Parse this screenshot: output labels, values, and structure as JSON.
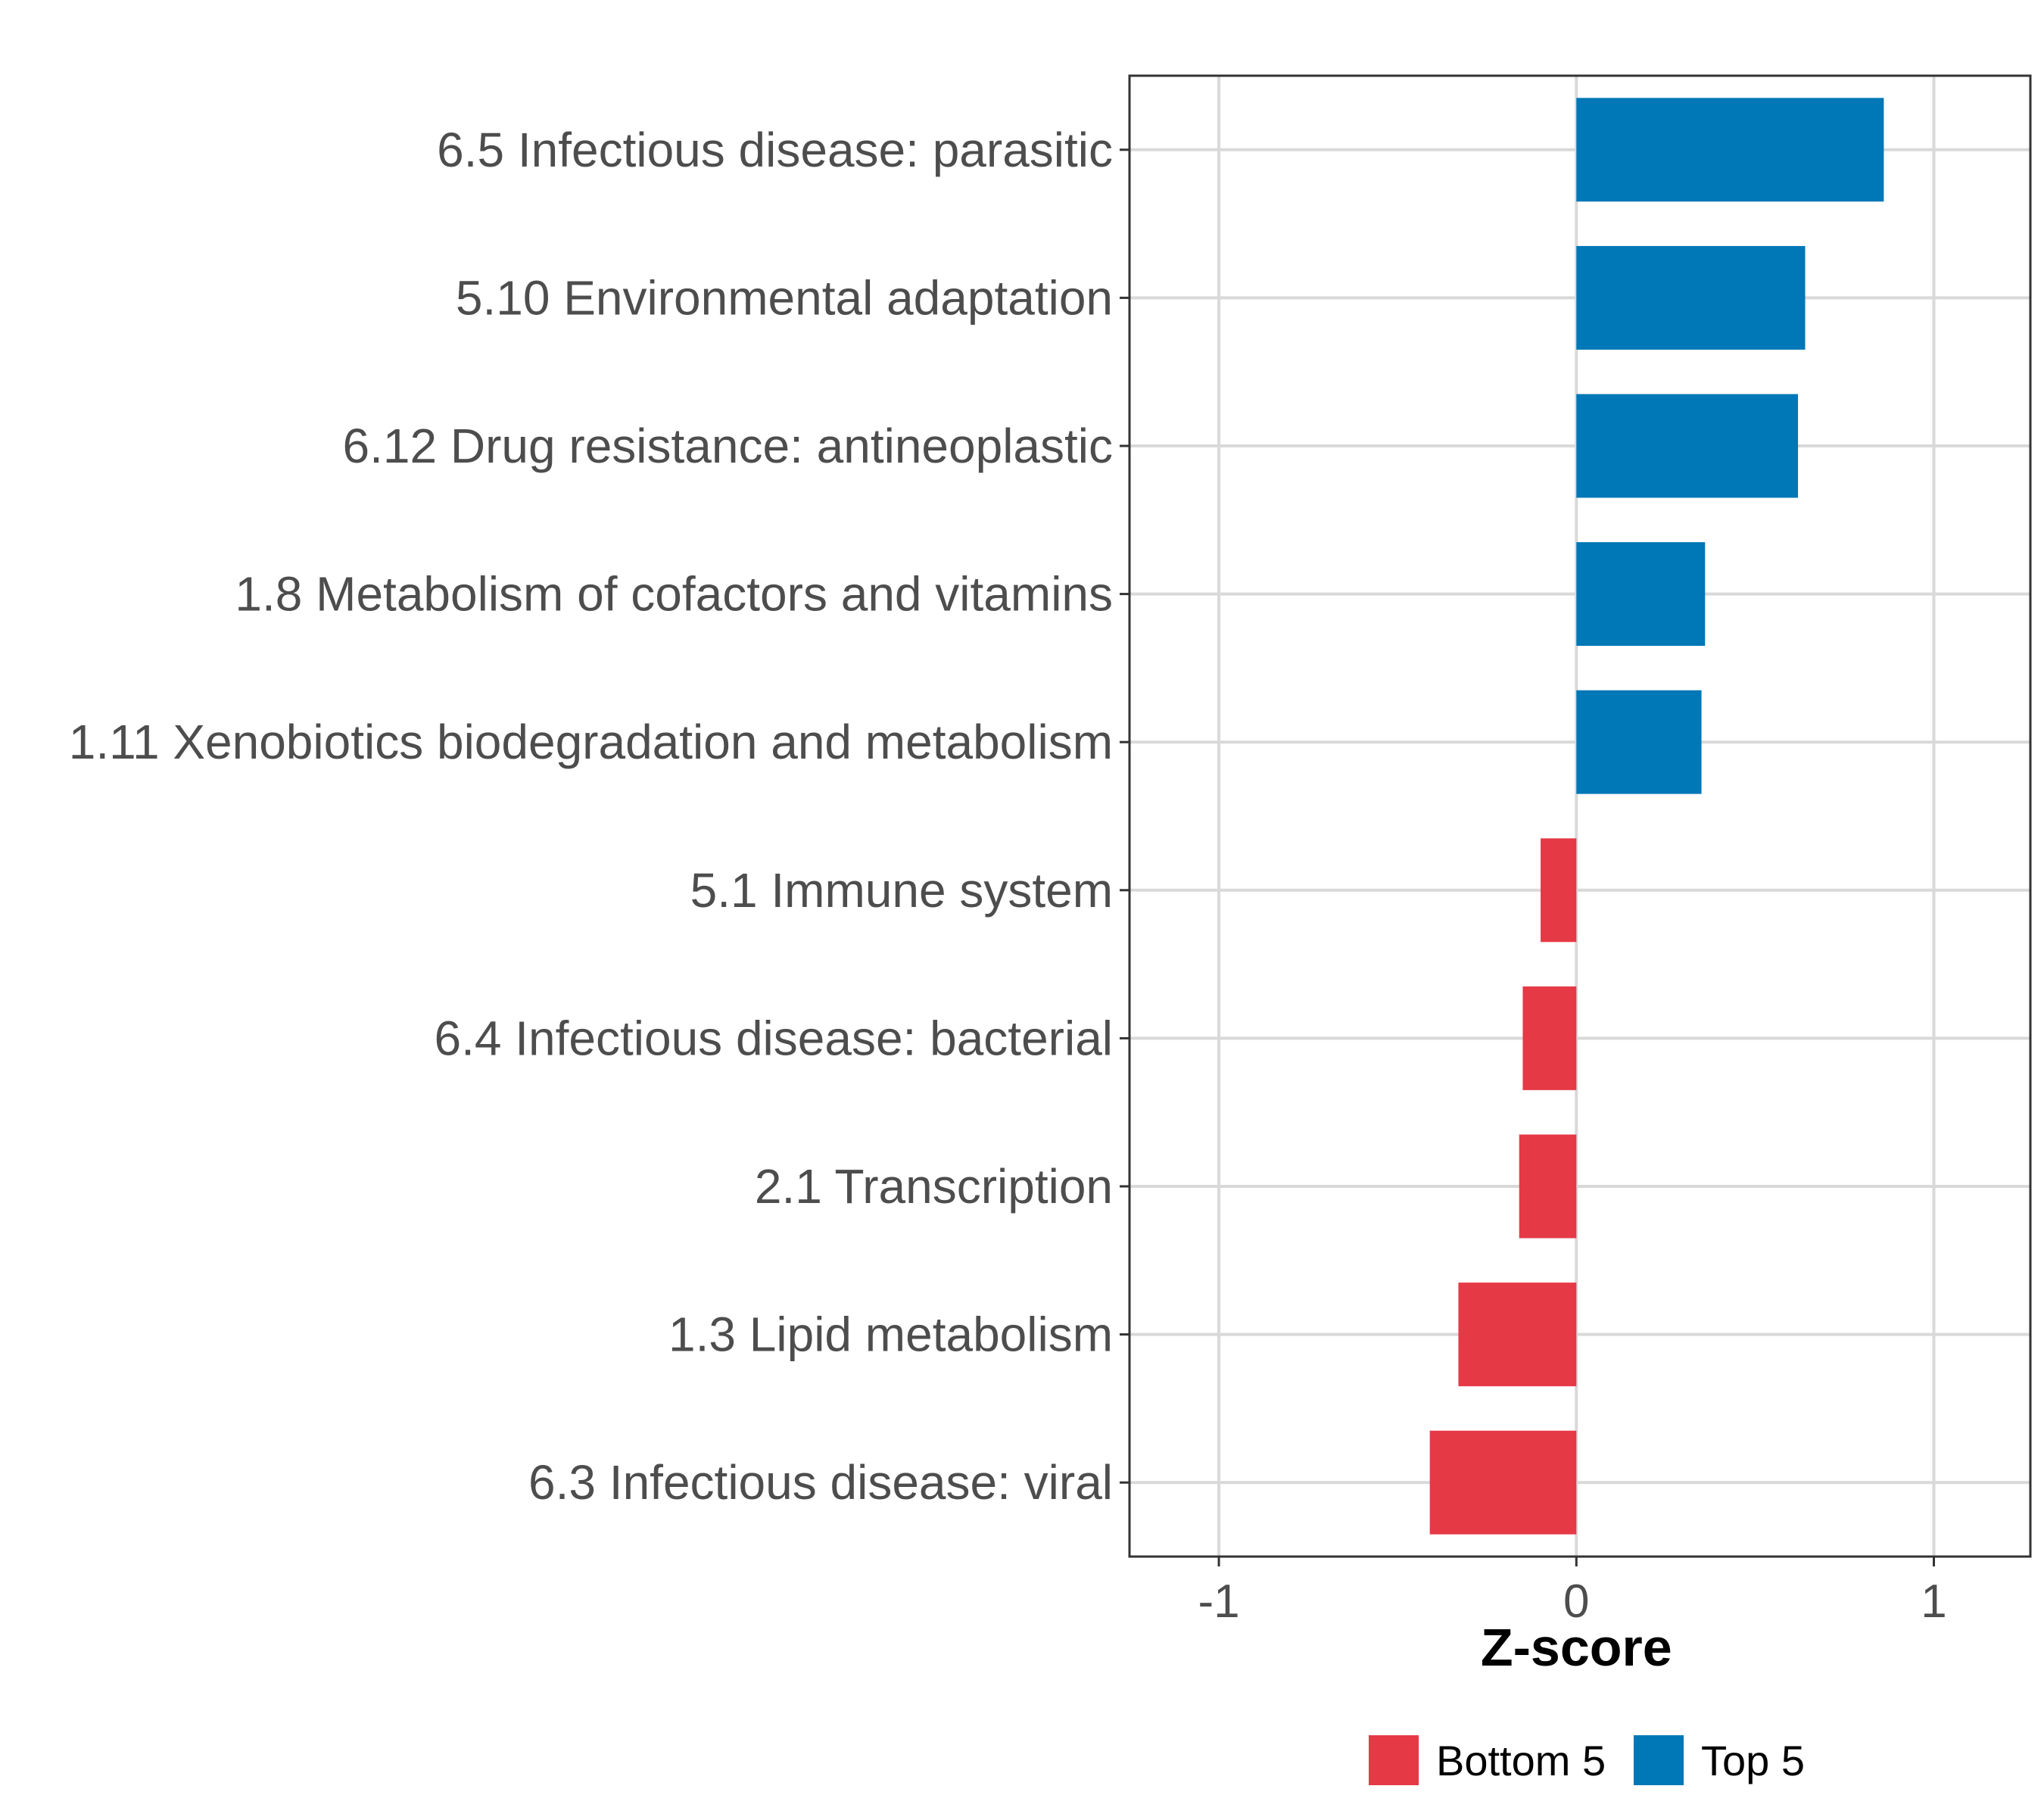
{
  "colors": {
    "bottom": "#e63946",
    "top": "#0077b6"
  },
  "chart_data": {
    "type": "bar",
    "orientation": "horizontal",
    "title": "",
    "xlabel": "Z-score",
    "ylabel": "",
    "xlim": [
      -1.25,
      1.27
    ],
    "xticks": [
      -1,
      0,
      1
    ],
    "xtick_labels": [
      "-1",
      "0",
      "1"
    ],
    "grid": true,
    "legend_position": "bottom",
    "categories": [
      "6.5 Infectious disease: parasitic",
      "5.10 Environmental adaptation",
      "6.12 Drug resistance: antineoplastic",
      "1.8 Metabolism of cofactors and vitamins",
      "1.11 Xenobiotics biodegradation and metabolism",
      "5.1 Immune system",
      "6.4 Infectious disease: bacterial",
      "2.1 Transcription",
      "1.3 Lipid metabolism",
      "6.3 Infectious disease: viral"
    ],
    "values": [
      0.86,
      0.64,
      0.62,
      0.36,
      0.35,
      -0.1,
      -0.15,
      -0.16,
      -0.33,
      -0.41
    ],
    "groups": [
      "Top 5",
      "Top 5",
      "Top 5",
      "Top 5",
      "Top 5",
      "Bottom 5",
      "Bottom 5",
      "Bottom 5",
      "Bottom 5",
      "Bottom 5"
    ],
    "legend": [
      {
        "label": "Bottom 5",
        "color": "#e63946"
      },
      {
        "label": "Top 5",
        "color": "#0077b6"
      }
    ]
  }
}
